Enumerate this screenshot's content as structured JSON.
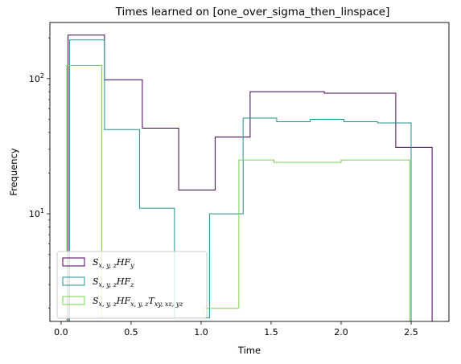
{
  "chart_data": {
    "type": "line",
    "title": "Times learned on [one_over_sigma_then_linspace]",
    "xlabel": "Time",
    "ylabel": "Frequency",
    "xlim": [
      -0.08,
      2.77
    ],
    "ylim": [
      1.6,
      260
    ],
    "yscale": "log",
    "grid": false,
    "legend_position": "lower-left",
    "x_ticks": [
      {
        "value": 0.0,
        "label": "0.0"
      },
      {
        "value": 0.5,
        "label": "0.5"
      },
      {
        "value": 1.0,
        "label": "1.0"
      },
      {
        "value": 1.5,
        "label": "1.5"
      },
      {
        "value": 2.0,
        "label": "2.0"
      },
      {
        "value": 2.5,
        "label": "2.5"
      }
    ],
    "y_ticks": [
      {
        "value": 10,
        "base": "10",
        "exp": "1"
      },
      {
        "value": 100,
        "base": "10",
        "exp": "2"
      }
    ],
    "series": [
      {
        "name_parts": [
          {
            "t": "S",
            "sub": "x, y, z"
          },
          {
            "t": "HF",
            "sub": "y"
          }
        ],
        "color": "#440154",
        "steps": [
          [
            0.05,
            210
          ],
          [
            0.31,
            98
          ],
          [
            0.58,
            43
          ],
          [
            0.84,
            15
          ],
          [
            1.1,
            37
          ],
          [
            1.35,
            80
          ],
          [
            1.88,
            78
          ],
          [
            2.39,
            31
          ],
          [
            2.65,
            31
          ]
        ]
      },
      {
        "name_parts": [
          {
            "t": "S",
            "sub": "x, y, z"
          },
          {
            "t": "HF",
            "sub": "z"
          }
        ],
        "color": "#21918c",
        "steps": [
          [
            0.06,
            193
          ],
          [
            0.31,
            42
          ],
          [
            0.56,
            11
          ],
          [
            0.81,
            1.7
          ],
          [
            1.06,
            10
          ],
          [
            1.3,
            51
          ],
          [
            1.54,
            48
          ],
          [
            1.78,
            50
          ],
          [
            2.02,
            48
          ],
          [
            2.26,
            47
          ],
          [
            2.5,
            47
          ]
        ]
      },
      {
        "name_parts": [
          {
            "t": "S",
            "sub": "x, y, z"
          },
          {
            "t": "HF",
            "sub": "x, y, z"
          },
          {
            "t": "T",
            "sub": "xy, xz, yz"
          }
        ],
        "color": "#7ad151",
        "steps": [
          [
            0.04,
            125
          ],
          [
            0.29,
            1.7
          ],
          [
            1.02,
            2.0
          ],
          [
            1.27,
            25
          ],
          [
            1.52,
            24
          ],
          [
            2.0,
            25
          ],
          [
            2.49,
            25
          ]
        ]
      }
    ]
  }
}
